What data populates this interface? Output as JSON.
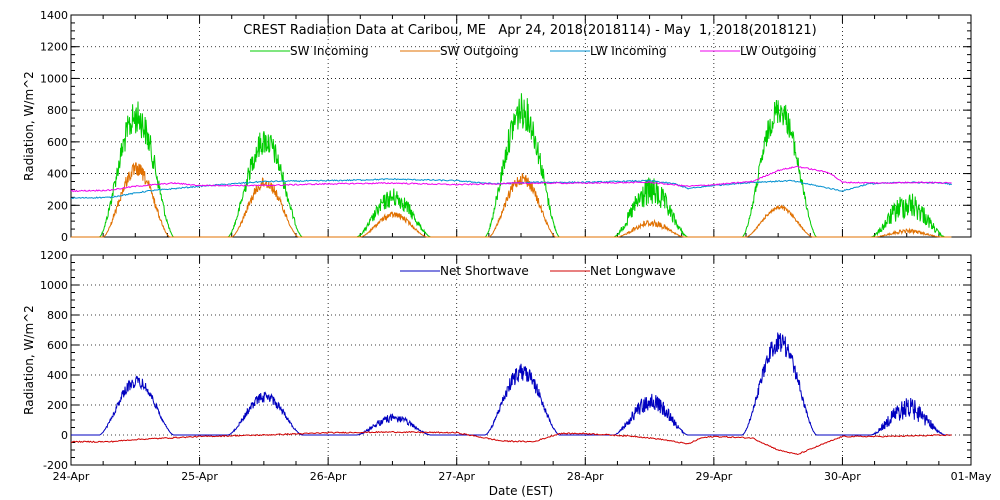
{
  "chart_data": [
    {
      "type": "line",
      "title": "CREST Radiation Data at Caribou, ME   Apr 24, 2018(2018114) - May  1, 2018(2018121)",
      "ylabel": "Radiation, W/m^2",
      "xlabel": "",
      "ylim": [
        0,
        1400
      ],
      "yticks": [
        0,
        200,
        400,
        600,
        800,
        1000,
        1200,
        1400
      ],
      "xlim": [
        0,
        7
      ],
      "x_unit": "days since 24-Apr 00:00 EST",
      "grid": true,
      "series": [
        {
          "name": "SW Incoming",
          "color": "#00cc00",
          "days": [
            {
              "day": 0,
              "sunrise": 0.22,
              "sunset": 0.8,
              "peak": 860,
              "noise": 0.25
            },
            {
              "day": 1,
              "sunrise": 0.22,
              "sunset": 0.8,
              "peak": 690,
              "noise": 0.25
            },
            {
              "day": 2,
              "sunrise": 0.22,
              "sunset": 0.8,
              "peak": 310,
              "noise": 0.4
            },
            {
              "day": 3,
              "sunrise": 0.22,
              "sunset": 0.8,
              "peak": 910,
              "noise": 0.25
            },
            {
              "day": 4,
              "sunrise": 0.22,
              "sunset": 0.8,
              "peak": 380,
              "noise": 0.5
            },
            {
              "day": 5,
              "sunrise": 0.22,
              "sunset": 0.8,
              "peak": 890,
              "noise": 0.2
            },
            {
              "day": 6,
              "sunrise": 0.22,
              "sunset": 0.8,
              "peak": 290,
              "noise": 0.6
            }
          ]
        },
        {
          "name": "SW Outgoing",
          "color": "#e07000",
          "days": [
            {
              "day": 0,
              "sunrise": 0.25,
              "sunset": 0.77,
              "peak": 470,
              "noise": 0.2
            },
            {
              "day": 1,
              "sunrise": 0.25,
              "sunset": 0.77,
              "peak": 380,
              "noise": 0.2
            },
            {
              "day": 2,
              "sunrise": 0.25,
              "sunset": 0.77,
              "peak": 160,
              "noise": 0.25
            },
            {
              "day": 3,
              "sunrise": 0.25,
              "sunset": 0.77,
              "peak": 410,
              "noise": 0.2
            },
            {
              "day": 4,
              "sunrise": 0.25,
              "sunset": 0.77,
              "peak": 110,
              "noise": 0.4
            },
            {
              "day": 5,
              "sunrise": 0.25,
              "sunset": 0.77,
              "peak": 200,
              "noise": 0.15
            },
            {
              "day": 6,
              "sunrise": 0.25,
              "sunset": 0.77,
              "peak": 50,
              "noise": 0.5
            }
          ]
        },
        {
          "name": "LW Incoming",
          "color": "#0090d0",
          "points": [
            [
              0,
              245
            ],
            [
              0.3,
              250
            ],
            [
              0.6,
              290
            ],
            [
              1.0,
              320
            ],
            [
              1.5,
              350
            ],
            [
              2.0,
              355
            ],
            [
              2.5,
              365
            ],
            [
              3.0,
              355
            ],
            [
              3.3,
              335
            ],
            [
              3.6,
              345
            ],
            [
              4.0,
              345
            ],
            [
              4.5,
              355
            ],
            [
              4.7,
              335
            ],
            [
              4.8,
              305
            ],
            [
              5.0,
              325
            ],
            [
              5.3,
              345
            ],
            [
              5.6,
              355
            ],
            [
              5.85,
              315
            ],
            [
              6.0,
              290
            ],
            [
              6.2,
              335
            ],
            [
              6.5,
              345
            ],
            [
              6.8,
              340
            ],
            [
              6.85,
              330
            ]
          ]
        },
        {
          "name": "LW Outgoing",
          "color": "#ee00ee",
          "points": [
            [
              0,
              290
            ],
            [
              0.3,
              295
            ],
            [
              0.5,
              320
            ],
            [
              0.8,
              340
            ],
            [
              1.0,
              325
            ],
            [
              1.5,
              325
            ],
            [
              2.0,
              335
            ],
            [
              2.5,
              340
            ],
            [
              3.0,
              330
            ],
            [
              3.5,
              340
            ],
            [
              4.0,
              340
            ],
            [
              4.5,
              345
            ],
            [
              4.8,
              320
            ],
            [
              5.0,
              330
            ],
            [
              5.3,
              350
            ],
            [
              5.5,
              420
            ],
            [
              5.65,
              445
            ],
            [
              5.9,
              405
            ],
            [
              6.0,
              345
            ],
            [
              6.3,
              340
            ],
            [
              6.6,
              345
            ],
            [
              6.85,
              340
            ]
          ]
        }
      ]
    },
    {
      "type": "line",
      "title": "",
      "ylabel": "Radiation, W/m^2",
      "xlabel": "Date (EST)",
      "ylim": [
        -200,
        1200
      ],
      "yticks": [
        -200,
        0,
        200,
        400,
        600,
        800,
        1000,
        1200
      ],
      "xlim": [
        0,
        7
      ],
      "x_unit": "days since 24-Apr 00:00 EST",
      "xticks": [
        0,
        1,
        2,
        3,
        4,
        5,
        6,
        7
      ],
      "xtick_labels": [
        "24-Apr",
        "25-Apr",
        "26-Apr",
        "27-Apr",
        "28-Apr",
        "29-Apr",
        "30-Apr",
        "01-May"
      ],
      "grid": true,
      "series": [
        {
          "name": "Net Shortwave",
          "color": "#0000c0",
          "days": [
            {
              "day": 0,
              "sunrise": 0.22,
              "sunset": 0.8,
              "peak": 395,
              "noise": 0.2
            },
            {
              "day": 1,
              "sunrise": 0.22,
              "sunset": 0.8,
              "peak": 290,
              "noise": 0.25
            },
            {
              "day": 2,
              "sunrise": 0.22,
              "sunset": 0.8,
              "peak": 140,
              "noise": 0.4
            },
            {
              "day": 3,
              "sunrise": 0.22,
              "sunset": 0.8,
              "peak": 480,
              "noise": 0.25
            },
            {
              "day": 4,
              "sunrise": 0.22,
              "sunset": 0.8,
              "peak": 280,
              "noise": 0.45
            },
            {
              "day": 5,
              "sunrise": 0.22,
              "sunset": 0.8,
              "peak": 690,
              "noise": 0.2
            },
            {
              "day": 6,
              "sunrise": 0.22,
              "sunset": 0.8,
              "peak": 250,
              "noise": 0.6
            }
          ]
        },
        {
          "name": "Net Longwave",
          "color": "#d00000",
          "points": [
            [
              0,
              -45
            ],
            [
              0.3,
              -45
            ],
            [
              0.5,
              -30
            ],
            [
              1.0,
              -10
            ],
            [
              1.5,
              0
            ],
            [
              2.0,
              15
            ],
            [
              2.5,
              20
            ],
            [
              3.0,
              15
            ],
            [
              3.35,
              -40
            ],
            [
              3.6,
              -45
            ],
            [
              3.8,
              10
            ],
            [
              4.0,
              10
            ],
            [
              4.4,
              -10
            ],
            [
              4.6,
              -30
            ],
            [
              4.8,
              -60
            ],
            [
              4.9,
              -20
            ],
            [
              5.0,
              -10
            ],
            [
              5.3,
              -20
            ],
            [
              5.5,
              -100
            ],
            [
              5.65,
              -130
            ],
            [
              5.85,
              -60
            ],
            [
              6.0,
              -10
            ],
            [
              6.3,
              -10
            ],
            [
              6.6,
              -5
            ],
            [
              6.85,
              0
            ]
          ]
        }
      ]
    }
  ]
}
